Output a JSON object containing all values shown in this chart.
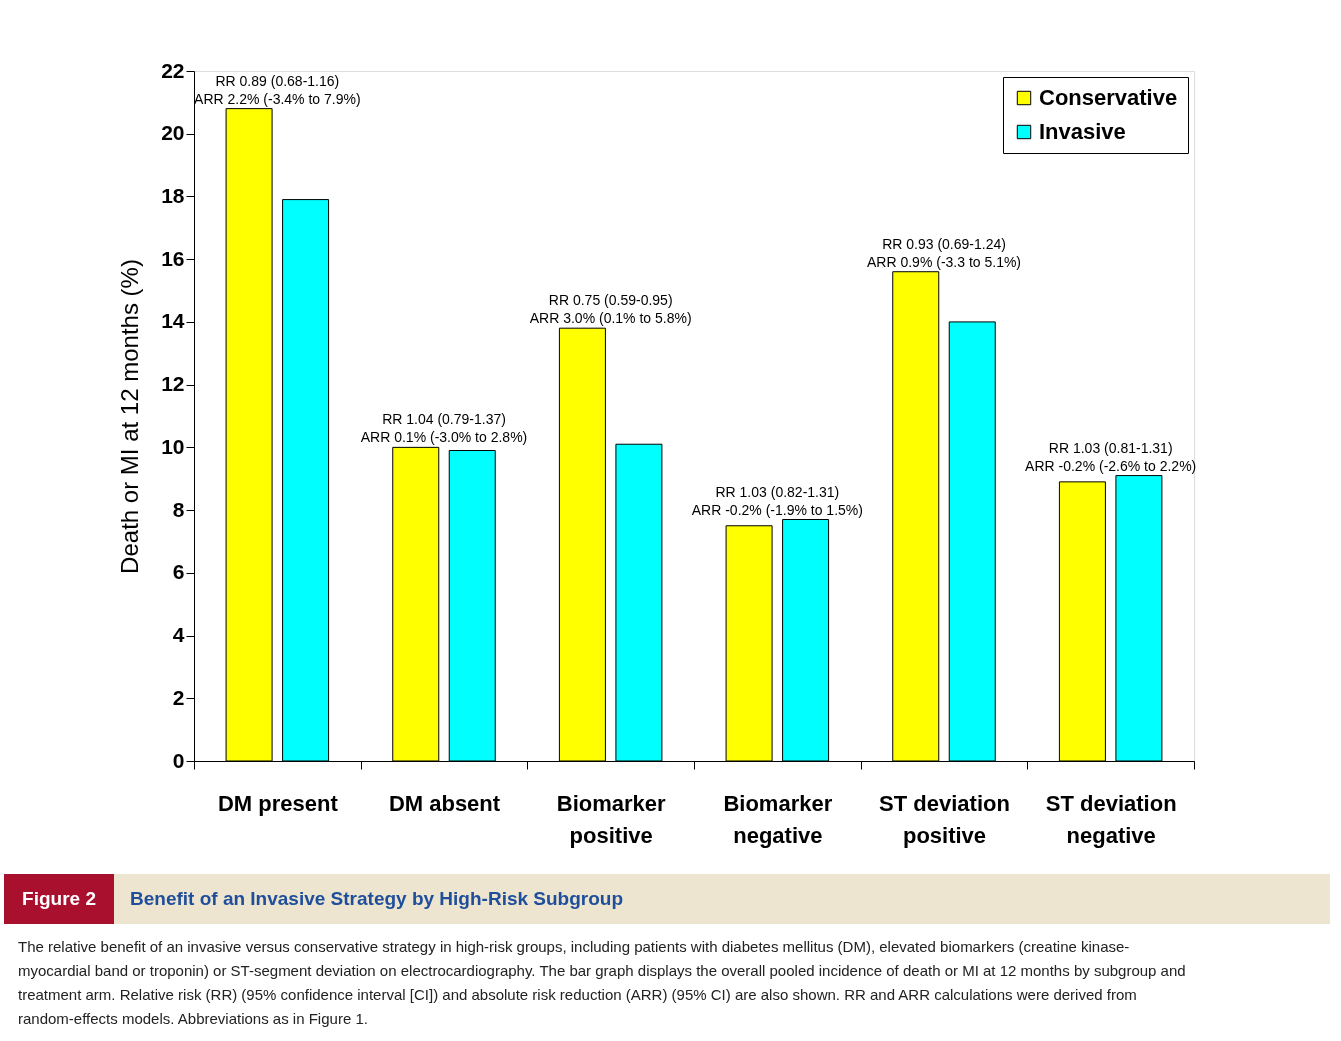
{
  "chart_data": {
    "type": "bar",
    "title": "Benefit of an Invasive Strategy by High-Risk Subgroup",
    "ylabel": "Death or MI at 12 months (%)",
    "categories": [
      "DM present",
      "DM absent",
      "Biomarker\npositive",
      "Biomarker\nnegative",
      "ST deviation\npositive",
      "ST deviation\nnegative"
    ],
    "series": [
      {
        "name": "Conservative",
        "color": "#ffff00",
        "values": [
          20.8,
          10.0,
          13.8,
          7.5,
          15.6,
          8.9
        ]
      },
      {
        "name": "Invasive",
        "color": "#00ffff",
        "values": [
          17.9,
          9.9,
          10.1,
          7.7,
          14.0,
          9.1
        ]
      }
    ],
    "ylim": [
      0,
      22
    ],
    "yticks": [
      0,
      2,
      4,
      6,
      8,
      10,
      12,
      14,
      16,
      18,
      20,
      22
    ],
    "legend": "top right",
    "annotations": [
      "RR 0.89 (0.68-1.16)\nARR 2.2% (-3.4% to 7.9%)",
      "RR 1.04 (0.79-1.37)\nARR 0.1% (-3.0% to 2.8%)",
      "RR 0.75 (0.59-0.95)\nARR 3.0% (0.1% to 5.8%)",
      "RR 1.03 (0.82-1.31)\nARR -0.2% (-1.9% to 1.5%)",
      "RR 0.93 (0.69-1.24)\nARR 0.9% (-3.3 to 5.1%)",
      "RR 1.03 (0.81-1.31)\nARR -0.2% (-2.6% to 2.2%)",
      "Figure 2",
      "The relative benefit of an invasive versus conservative strategy in high-risk groups, including patients with diabetes mellitus (DM), elevated biomarkers (creatine kinase-myocardial band or troponin) or ST-segment deviation on electrocardiography. The bar graph displays the overall pooled incidence of death or MI at 12 months by subgroup and treatment arm. Relative risk (RR) (95% confidence interval [CI]) and absolute risk reduction (ARR) (95% CI) are also shown. RR and ARR calculations were derived from random-effects models. Abbreviations as in Figure 1."
    ]
  }
}
